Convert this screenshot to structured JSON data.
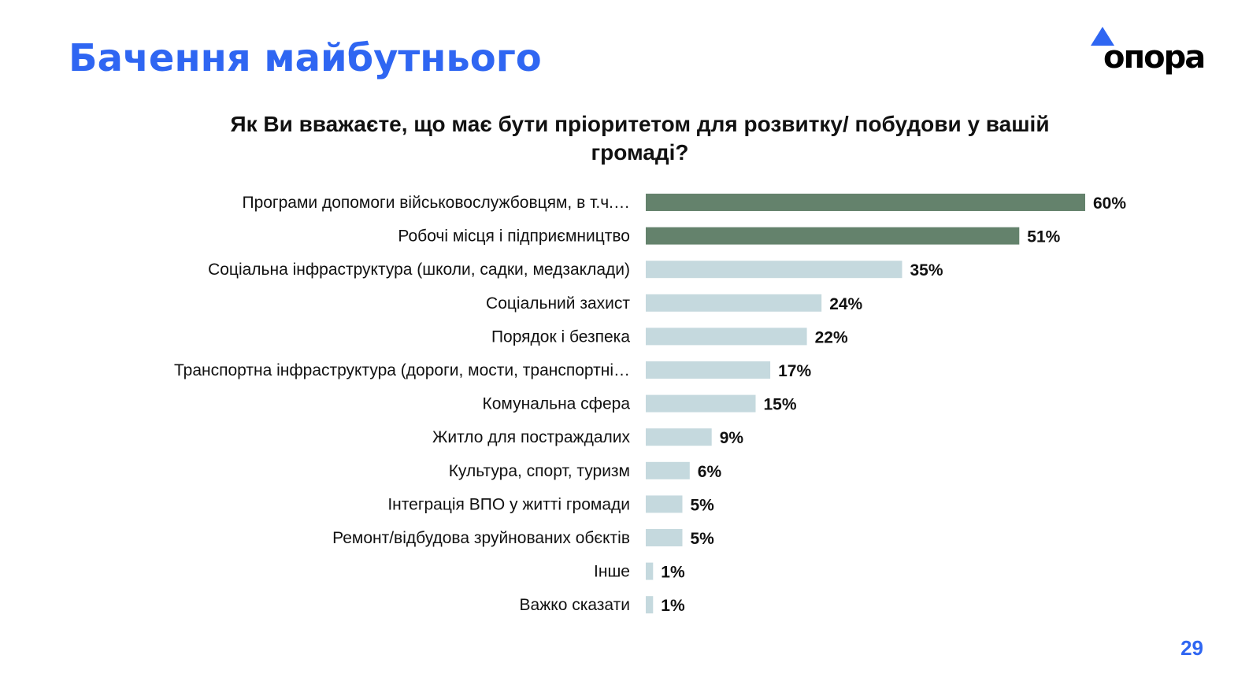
{
  "header": {
    "title": "Бачення майбутнього",
    "logo_text": "опора",
    "page_number": "29"
  },
  "chart_data": {
    "type": "bar",
    "orientation": "horizontal",
    "title": "Як Ви вважаєте, що має бути пріоритетом для розвитку/ побудови у вашій громаді?",
    "categories": [
      "Програми допомоги військовослужбовцям, в т.ч.…",
      "Робочі місця і підприємництво",
      "Соціальна інфраструктура (школи, садки, медзаклади)",
      "Соціальний захист",
      "Порядок і безпека",
      "Транспортна інфраструктура (дороги, мости, транспортні…",
      "Комунальна сфера",
      "Житло для постраждалих",
      "Культура, спорт, туризм",
      "Інтеграція ВПО у житті громади",
      "Ремонт/відбудова зруйнованих обєктів",
      "Інше",
      "Важко сказати"
    ],
    "values": [
      60,
      51,
      35,
      24,
      22,
      17,
      15,
      9,
      6,
      5,
      5,
      1,
      1
    ],
    "value_labels": [
      "60%",
      "51%",
      "35%",
      "24%",
      "22%",
      "17%",
      "15%",
      "9%",
      "6%",
      "5%",
      "5%",
      "1%",
      "1%"
    ],
    "highlight_count": 2,
    "colors": {
      "highlight": "#64826c",
      "default": "#c5d9de"
    },
    "xlim": [
      0,
      60
    ],
    "grid": false
  }
}
